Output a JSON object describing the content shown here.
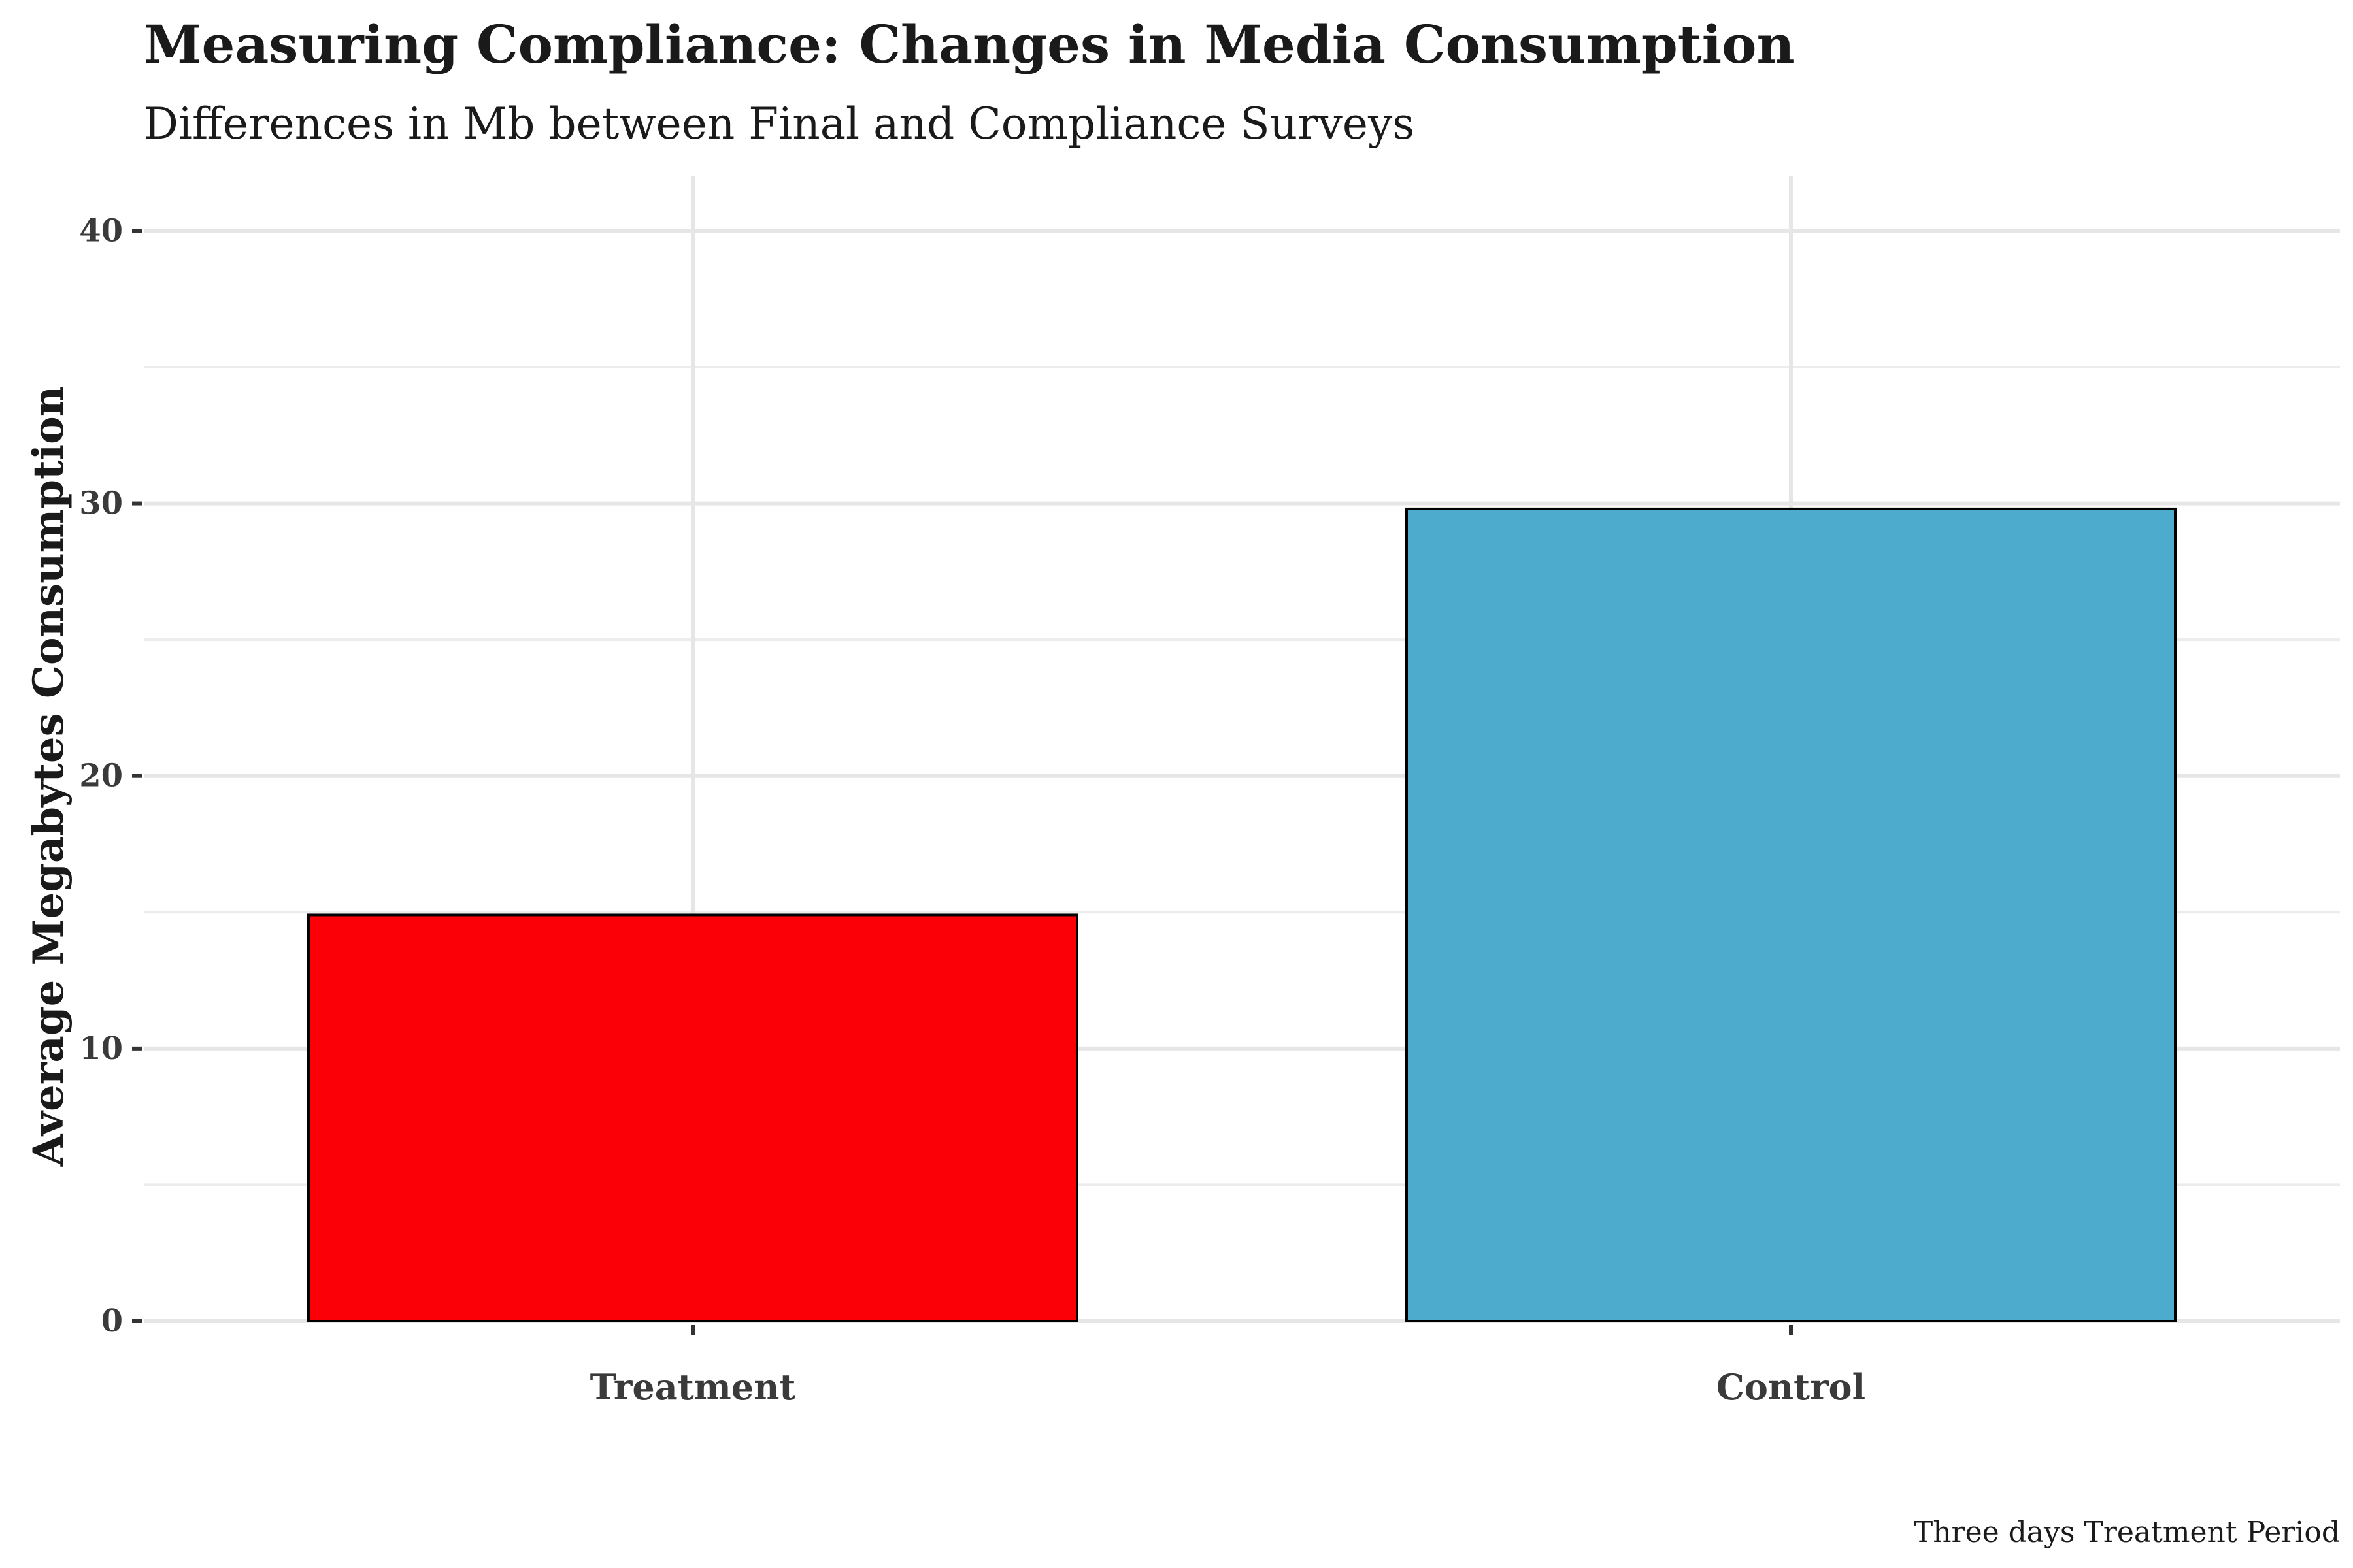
{
  "chart_data": {
    "type": "bar",
    "title": "Measuring Compliance: Changes in Media Consumption",
    "subtitle": "Differences in Mb between Final and Compliance Surveys",
    "xlabel": "",
    "ylabel": "Average Megabytes Consumption",
    "caption": "Three days Treatment Period",
    "categories": [
      "Treatment",
      "Control"
    ],
    "values": [
      14.9,
      29.8
    ],
    "colors": [
      "#fc0007",
      "#4dacce"
    ],
    "bar_outline_color": "#000000",
    "ylim": [
      0,
      42
    ],
    "yticks": [
      0,
      10,
      20,
      30,
      40
    ],
    "grid": true,
    "legend": "none"
  }
}
